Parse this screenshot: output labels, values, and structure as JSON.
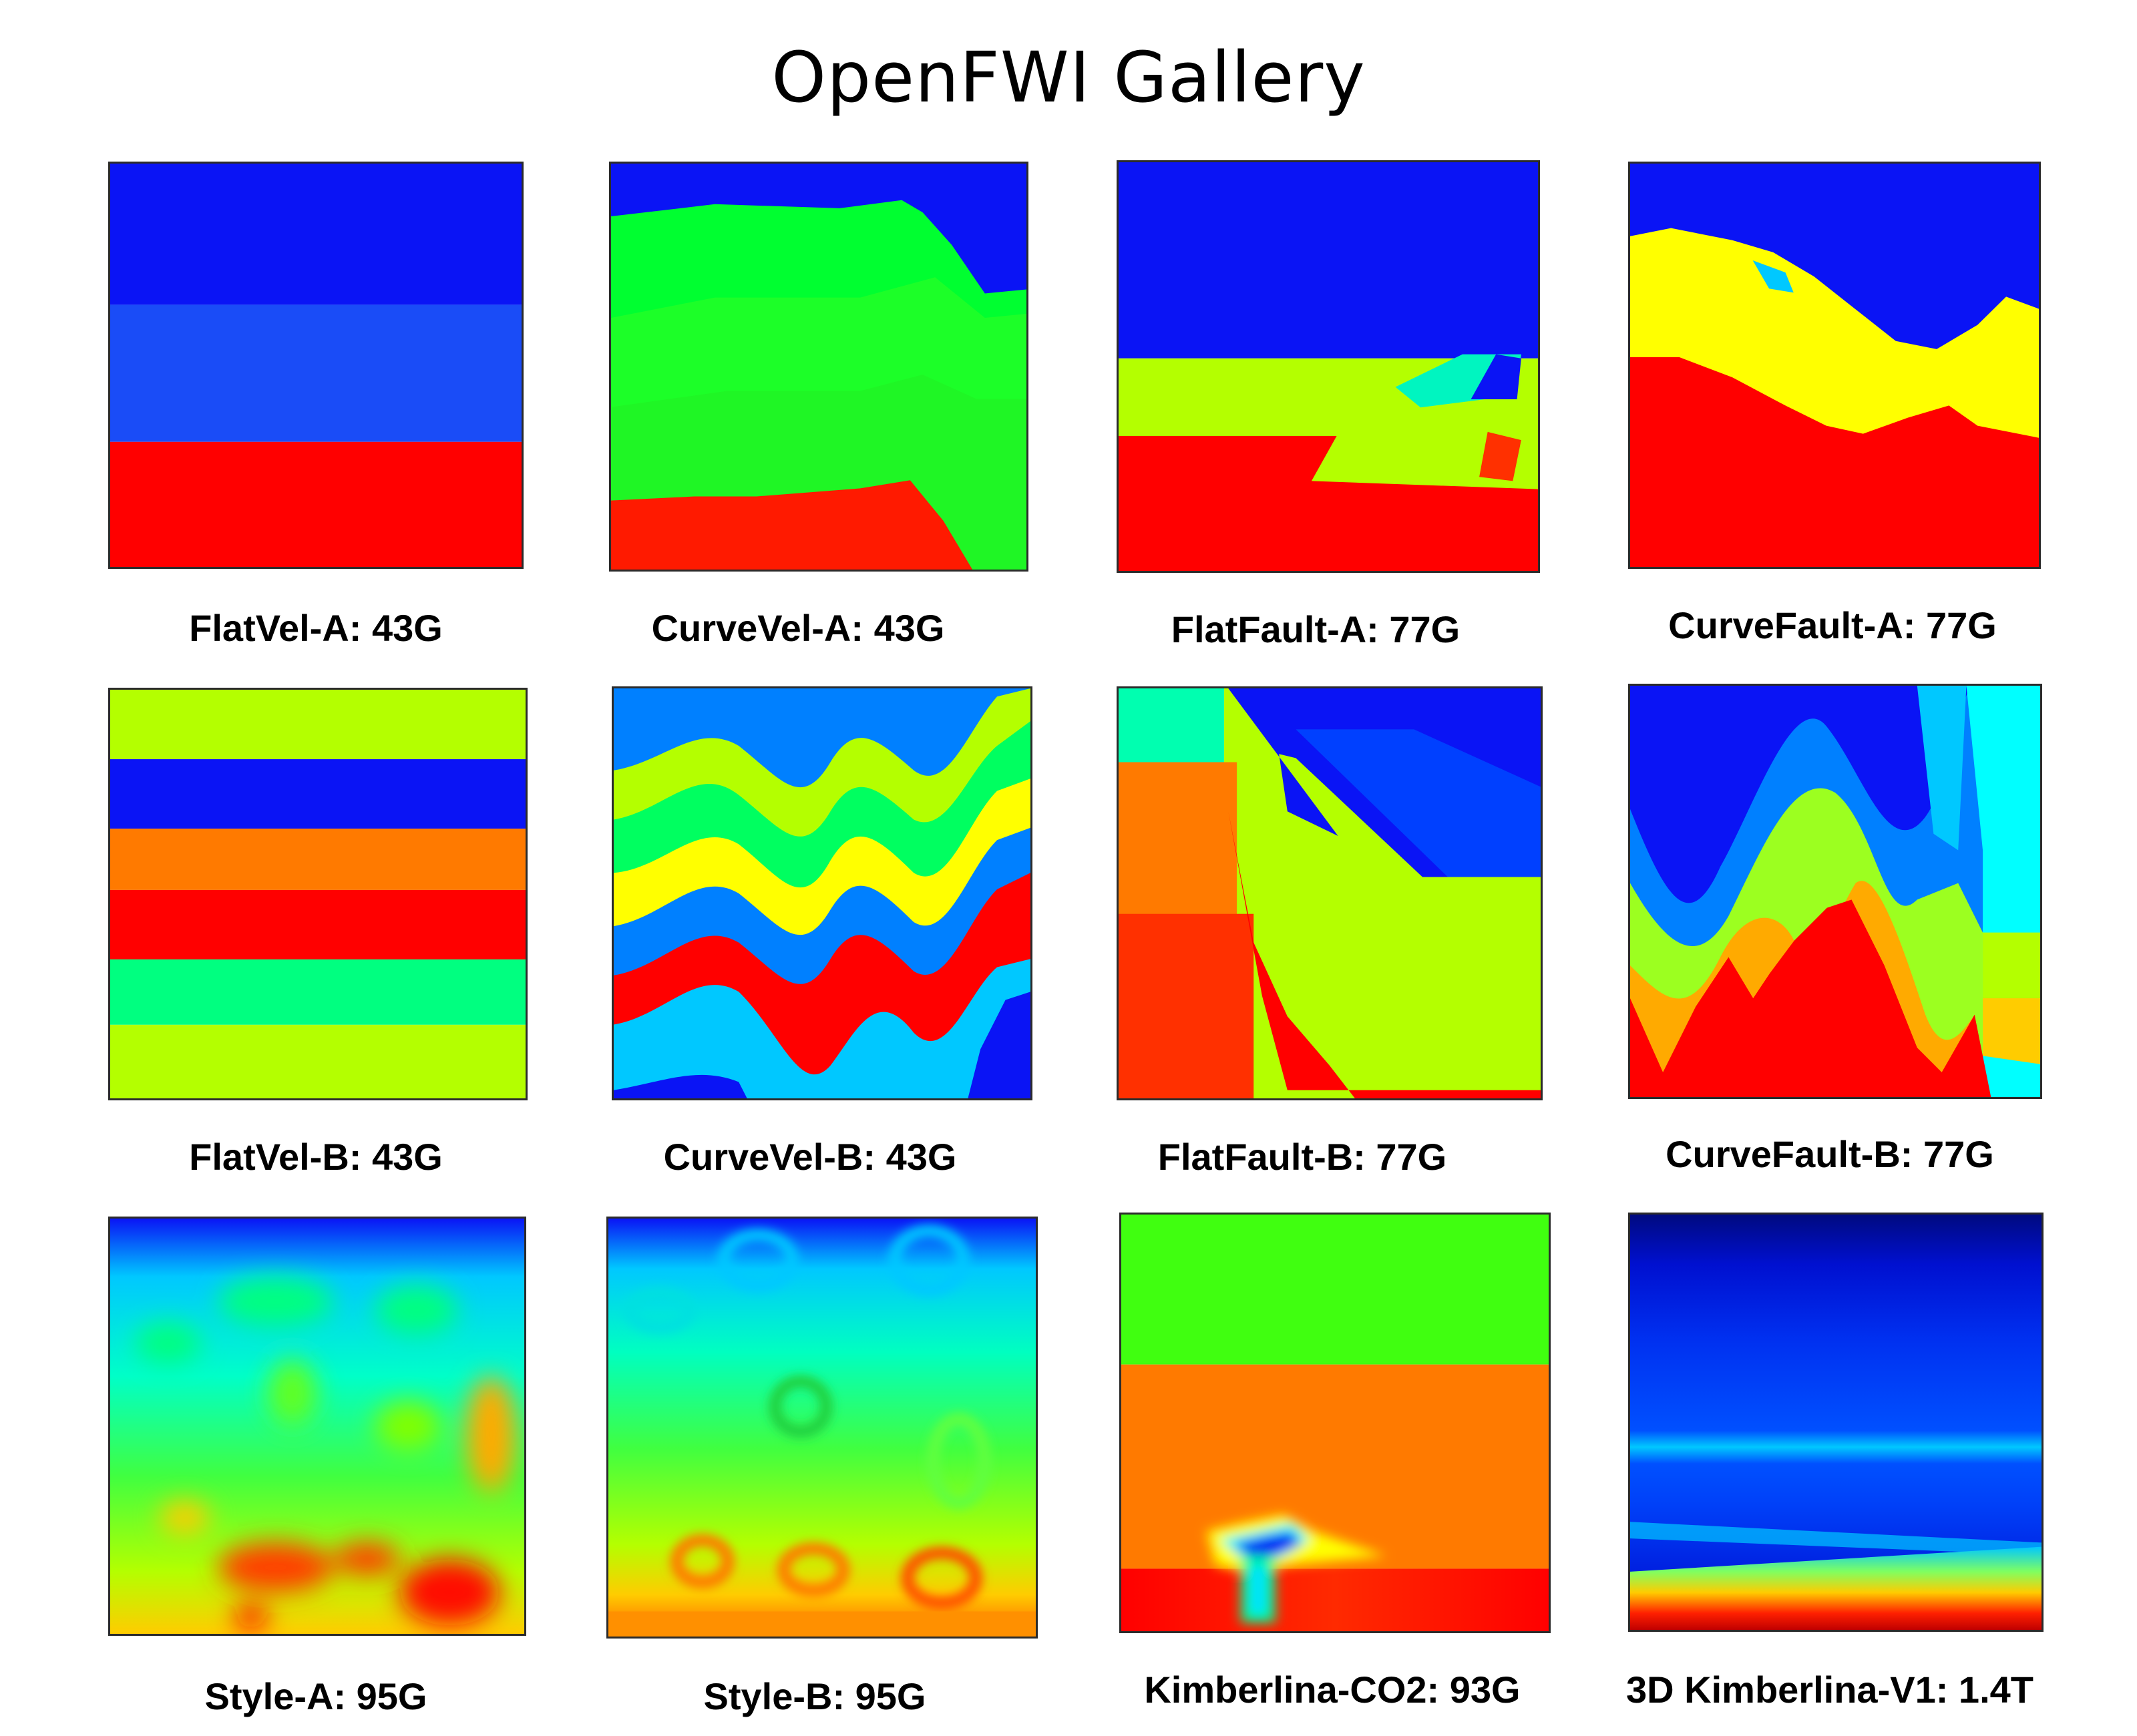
{
  "title": "OpenFWI Gallery",
  "colormap": "jet",
  "panels": [
    {
      "label": "FlatVel-A: 43G",
      "dataset": "FlatVel-A",
      "size": "43G"
    },
    {
      "label": "CurveVel-A: 43G",
      "dataset": "CurveVel-A",
      "size": "43G"
    },
    {
      "label": "FlatFault-A: 77G",
      "dataset": "FlatFault-A",
      "size": "77G"
    },
    {
      "label": "CurveFault-A: 77G",
      "dataset": "CurveFault-A",
      "size": "77G"
    },
    {
      "label": "FlatVel-B: 43G",
      "dataset": "FlatVel-B",
      "size": "43G"
    },
    {
      "label": "CurveVel-B: 43G",
      "dataset": "CurveVel-B",
      "size": "43G"
    },
    {
      "label": "FlatFault-B: 77G",
      "dataset": "FlatFault-B",
      "size": "77G"
    },
    {
      "label": "CurveFault-B: 77G",
      "dataset": "CurveFault-B",
      "size": "77G"
    },
    {
      "label": "Style-A: 95G",
      "dataset": "Style-A",
      "size": "95G"
    },
    {
      "label": "Style-B: 95G",
      "dataset": "Style-B",
      "size": "95G"
    },
    {
      "label": "Kimberlina-CO2: 93G",
      "dataset": "Kimberlina-CO2",
      "size": "93G"
    },
    {
      "label": "3D Kimberlina-V1: 1.4T",
      "dataset": "3D Kimberlina-V1",
      "size": "1.4T"
    }
  ],
  "colors": {
    "deep_blue": "#0a14f5",
    "blue": "#1a4cf7",
    "cyan": "#00e5ff",
    "green": "#00ff30",
    "yellow_green": "#b4ff00",
    "yellow": "#ffff00",
    "orange": "#ff7a00",
    "red": "#ff0000",
    "dark_red": "#c00000"
  }
}
